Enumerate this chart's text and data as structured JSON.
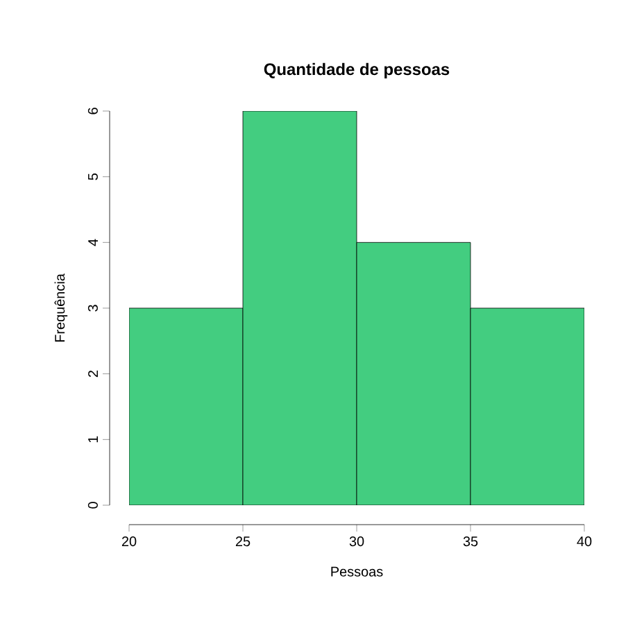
{
  "chart_data": {
    "type": "histogram",
    "title": "Quantidade de pessoas",
    "xlabel": "Pessoas",
    "ylabel": "Frequência",
    "bins": [
      20,
      25,
      30,
      35,
      40
    ],
    "values": [
      3,
      6,
      4,
      3
    ],
    "color": "#43cd80",
    "xlim": [
      20,
      40
    ],
    "xticks": [
      20,
      25,
      30,
      35,
      40
    ],
    "ylim": [
      0,
      6
    ],
    "yticks": [
      0,
      1,
      2,
      3,
      4,
      5,
      6
    ]
  }
}
